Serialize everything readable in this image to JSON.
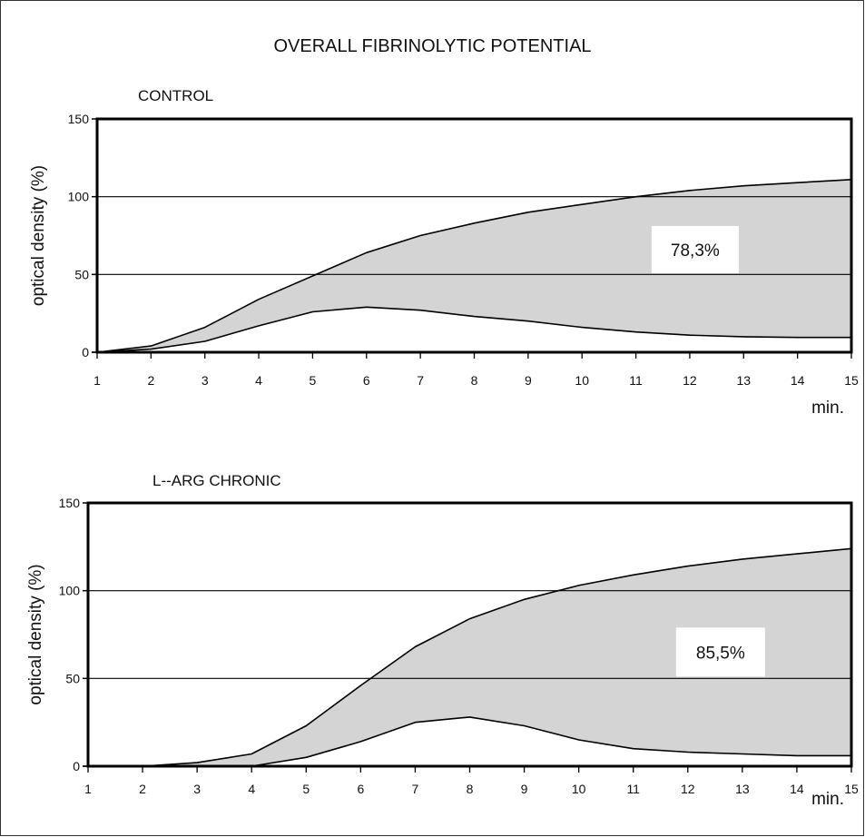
{
  "title": "OVERALL FIBRINOLYTIC POTENTIAL",
  "colors": {
    "fill": "#d4d4d4",
    "line": "#000000",
    "frame": "#000000"
  },
  "chart_data": [
    {
      "type": "area",
      "title": "CONTROL",
      "xlabel": "min.",
      "ylabel": "optical density (%)",
      "x": [
        1,
        2,
        3,
        4,
        5,
        6,
        7,
        8,
        9,
        10,
        11,
        12,
        13,
        14,
        15
      ],
      "xlim": [
        1,
        15
      ],
      "ylim": [
        0,
        150
      ],
      "yticks": [
        0,
        50,
        100,
        150
      ],
      "grid_y": [
        50,
        100
      ],
      "series": [
        {
          "values": [
            0,
            4,
            16,
            34,
            49,
            64,
            75,
            83,
            90,
            95,
            100,
            104,
            107,
            109,
            111
          ]
        },
        {
          "values": [
            0,
            2,
            7,
            17,
            26,
            29,
            27,
            23,
            20,
            16,
            13,
            11,
            10,
            9.5,
            9.5
          ]
        }
      ],
      "fill_between_series": true,
      "annotation": "78,3%",
      "annotation_at": {
        "x": 12.1,
        "y": 66
      }
    },
    {
      "type": "area",
      "title": "L--ARG CHRONIC",
      "xlabel": "min.",
      "ylabel": "optical density (%)",
      "x": [
        1,
        2,
        3,
        4,
        5,
        6,
        7,
        8,
        9,
        10,
        11,
        12,
        13,
        14,
        15
      ],
      "xlim": [
        1,
        15
      ],
      "ylim": [
        0,
        150
      ],
      "yticks": [
        0,
        50,
        100,
        150
      ],
      "grid_y": [
        50,
        100
      ],
      "series": [
        {
          "values": [
            0,
            0,
            2,
            7,
            23,
            46,
            68,
            84,
            95,
            103,
            109,
            114,
            118,
            121,
            124
          ]
        },
        {
          "values": [
            0,
            0,
            0,
            0,
            5,
            14,
            25,
            28,
            23,
            15,
            10,
            8,
            7,
            6,
            6
          ]
        }
      ],
      "fill_between_series": true,
      "annotation": "85,5%",
      "annotation_at": {
        "x": 12.6,
        "y": 65
      }
    }
  ]
}
